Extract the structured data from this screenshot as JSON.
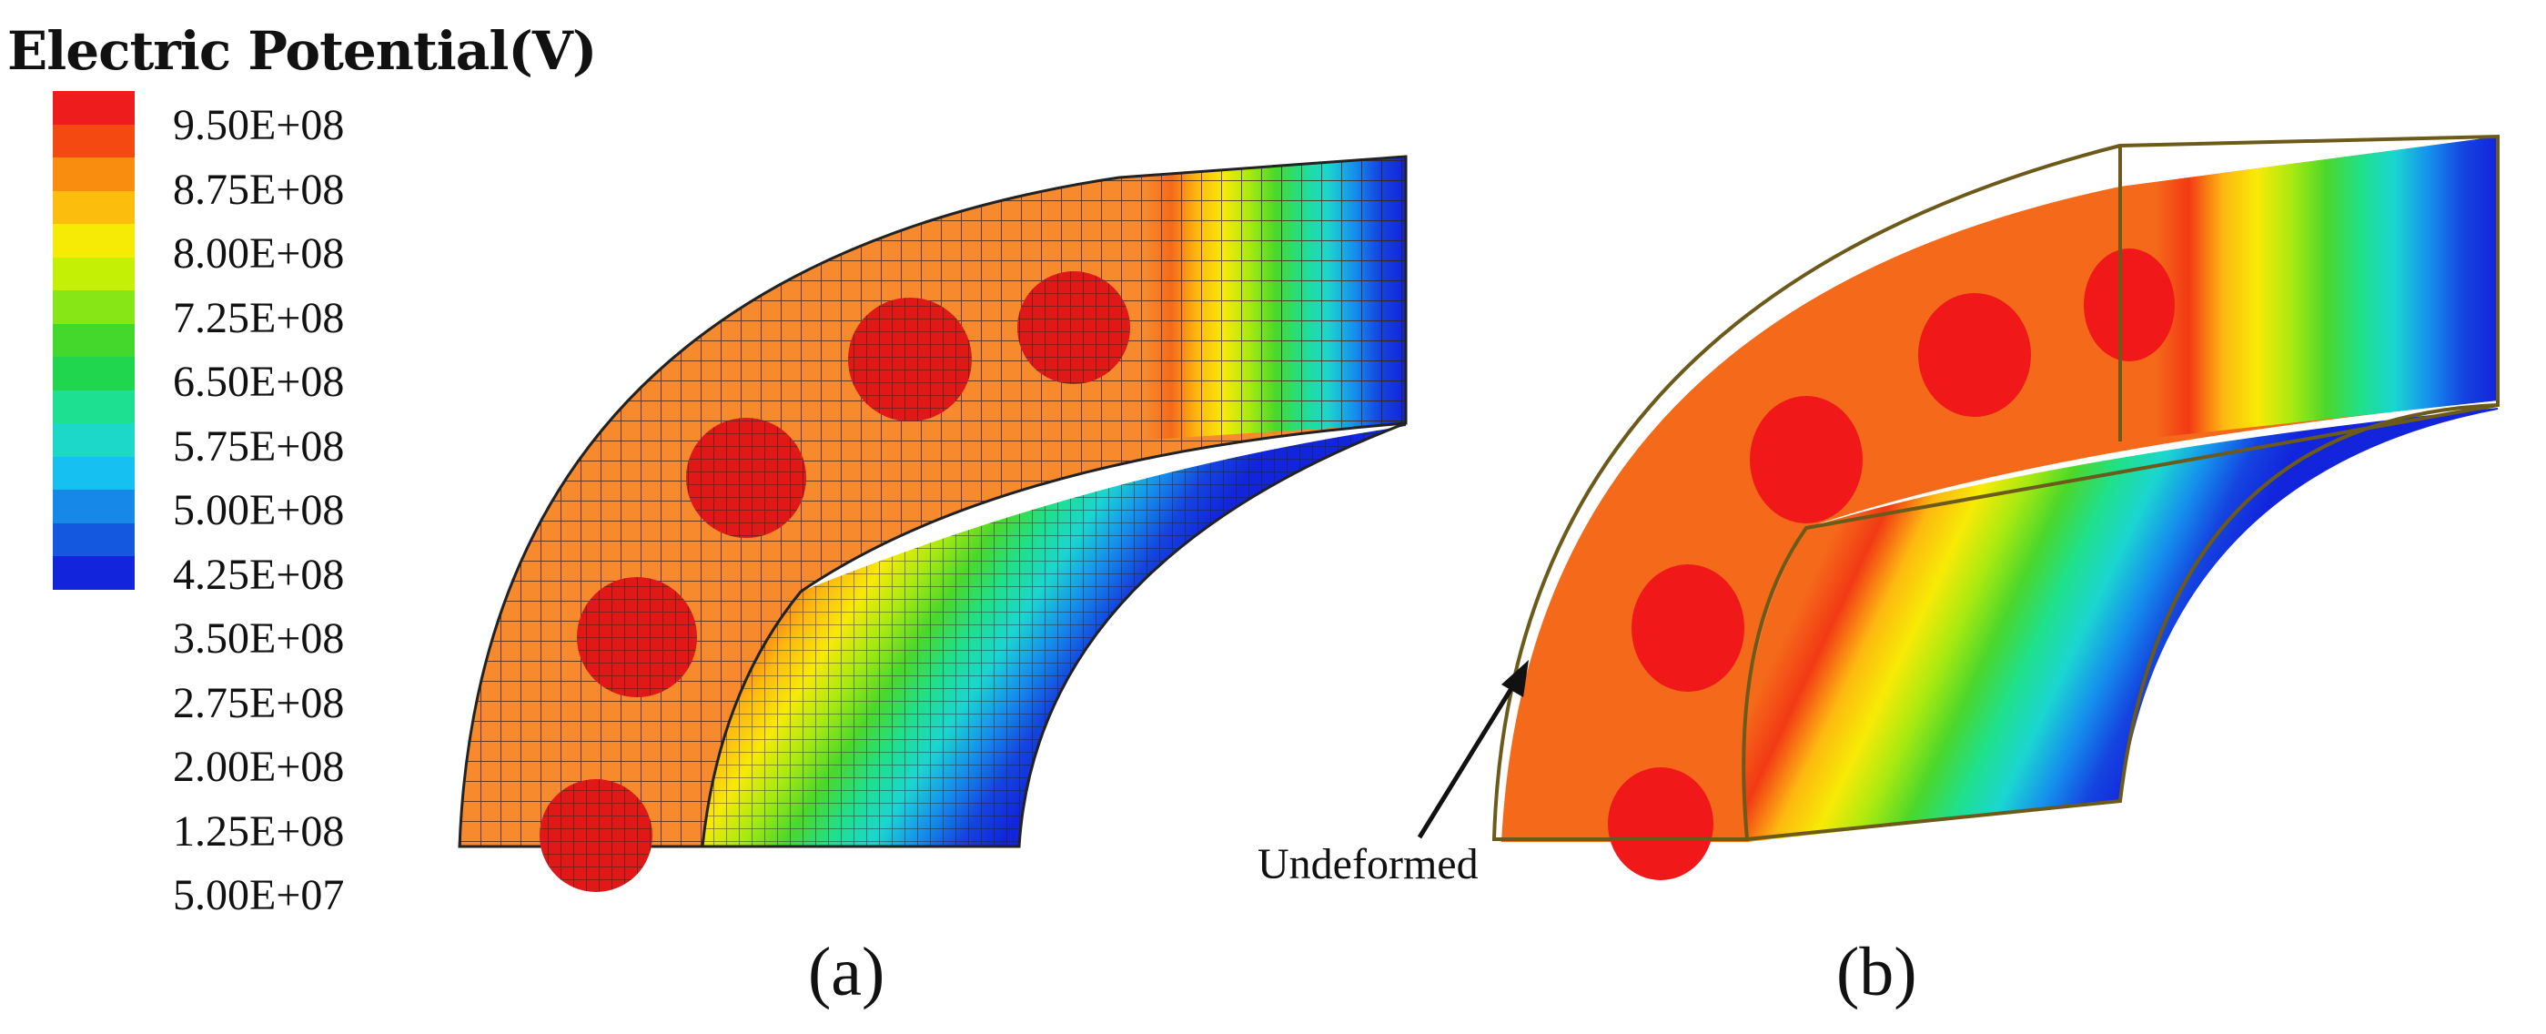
{
  "legend": {
    "title": "Electric Potential(V)",
    "labels": [
      "9.50E+08",
      "8.75E+08",
      "8.00E+08",
      "7.25E+08",
      "6.50E+08",
      "5.75E+08",
      "5.00E+08",
      "4.25E+08",
      "3.50E+08",
      "2.75E+08",
      "2.00E+08",
      "1.25E+08",
      "5.00E+07"
    ],
    "colors": [
      "#ee1c1c",
      "#f44a12",
      "#f98d10",
      "#fdbd0c",
      "#f5eb05",
      "#c4f005",
      "#86e616",
      "#44d82c",
      "#1fd64e",
      "#1de090",
      "#1bd8c8",
      "#16c0f0",
      "#1588e8",
      "#1558e0",
      "#1224dc"
    ]
  },
  "panels": {
    "a_label": "(a)",
    "b_label": "(b)"
  },
  "annotation": {
    "undeformed": "Undeformed"
  },
  "gradient_colors": [
    "#f78a2c",
    "#f56a1a",
    "#f23a14",
    "#fdb810",
    "#f7ea06",
    "#a8ea10",
    "#4ad82a",
    "#1fe08a",
    "#1bd6d0",
    "#1590ec",
    "#1444e0",
    "#1224dc"
  ]
}
